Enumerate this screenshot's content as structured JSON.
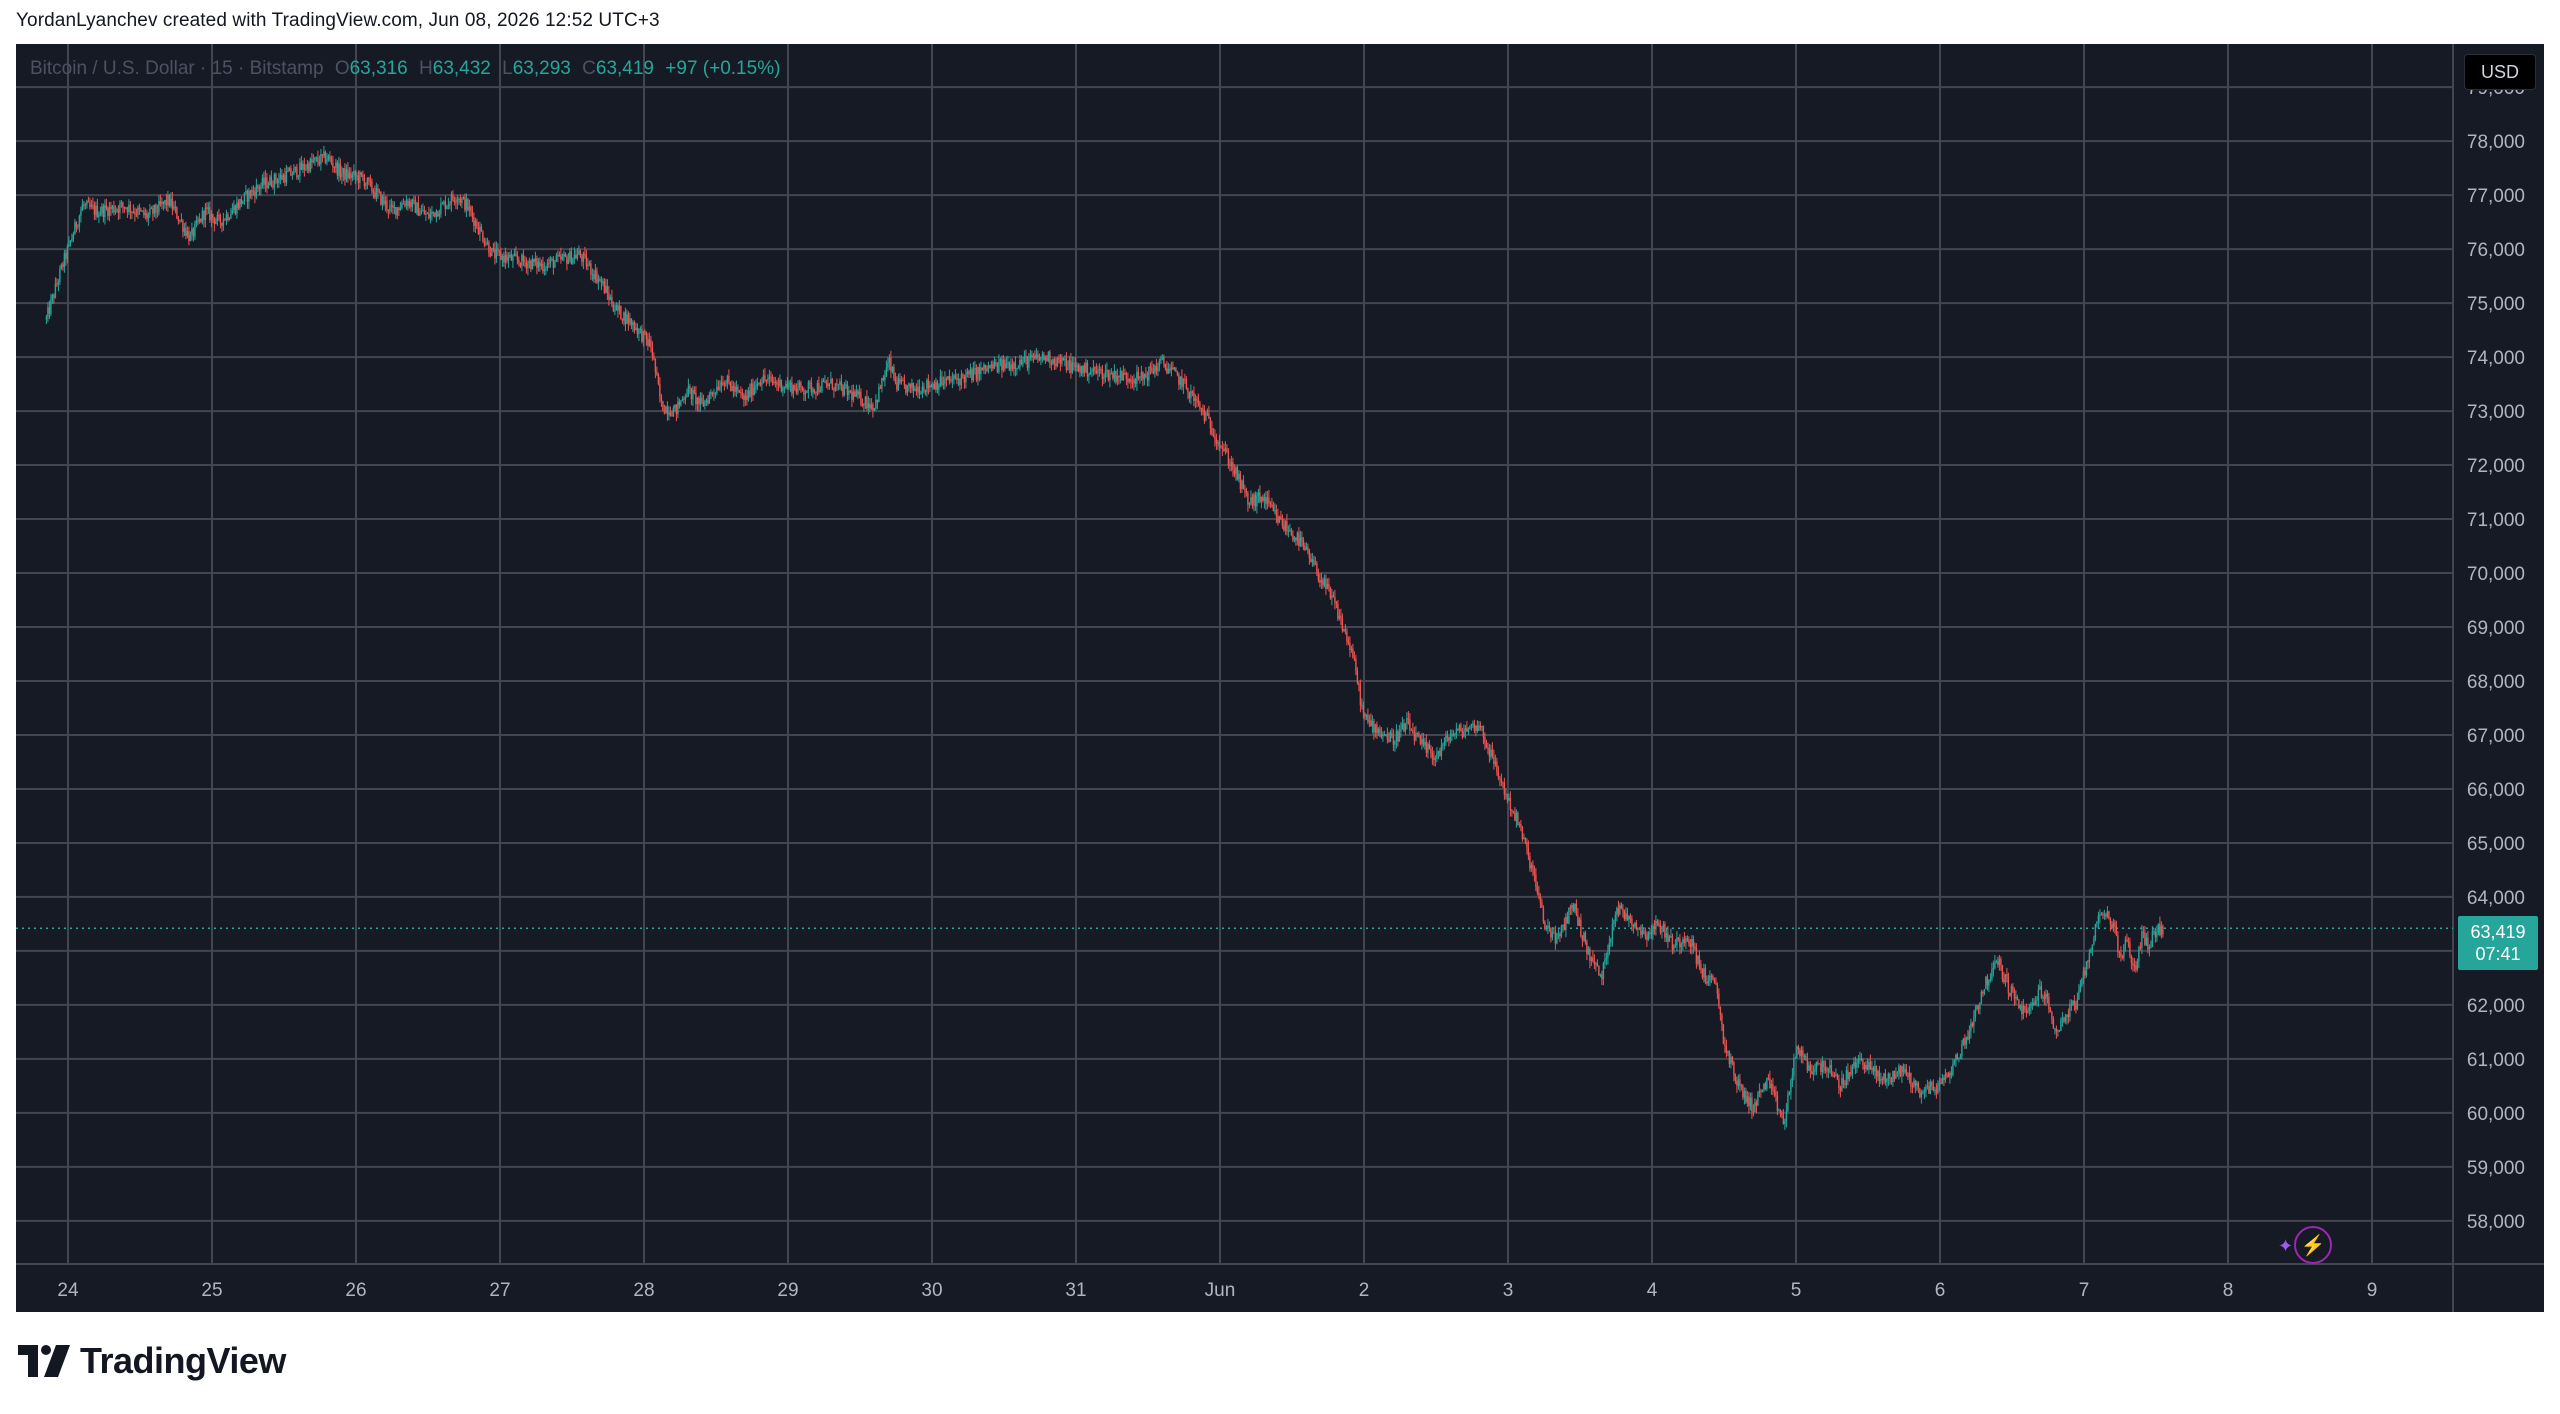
{
  "caption": "YordanLyanchev created with TradingView.com, Jun 08, 2026 12:52 UTC+3",
  "legend": {
    "symbol": "Bitcoin / U.S. Dollar · 15 · Bitstamp",
    "open_label": "O",
    "open": "63,316",
    "high_label": "H",
    "high": "63,432",
    "low_label": "L",
    "low": "63,293",
    "close_label": "C",
    "close": "63,419",
    "change": "+97 (+0.15%)"
  },
  "currency_button": "USD",
  "last_price": {
    "price": "63,419",
    "countdown": "07:41"
  },
  "brand": "TradingView",
  "colors": {
    "up": "#26a69a",
    "down": "#ef5350",
    "background": "#161a25",
    "grid": "#434651",
    "accent": "#9c27b0"
  },
  "chart_data": {
    "type": "line",
    "title": "Bitcoin / U.S. Dollar · 15 · Bitstamp",
    "ylim": [
      57200,
      79800
    ],
    "y_ticks": [
      "58,000",
      "59,000",
      "60,000",
      "61,000",
      "62,000",
      "63,000",
      "64,000",
      "65,000",
      "66,000",
      "67,000",
      "68,000",
      "69,000",
      "70,000",
      "71,000",
      "72,000",
      "73,000",
      "74,000",
      "75,000",
      "76,000",
      "77,000",
      "78,000",
      "79,000"
    ],
    "x_ticks": [
      "24",
      "25",
      "26",
      "27",
      "28",
      "29",
      "30",
      "31",
      "Jun",
      "2",
      "3",
      "4",
      "5",
      "6",
      "7",
      "8",
      "9"
    ],
    "grid": true,
    "last_value": 63419,
    "series": [
      {
        "x": [
          23.85,
          23.95,
          24.1,
          24.2,
          24.4,
          24.55,
          24.7,
          24.85,
          24.95,
          25.05,
          25.25,
          25.35,
          25.55,
          25.7,
          25.8,
          25.9,
          26.05,
          26.25,
          26.35,
          26.5,
          26.6,
          26.7,
          26.77,
          26.85,
          26.95,
          27.1,
          27.3,
          27.55,
          27.7,
          27.8,
          27.93,
          28.05,
          28.12,
          28.22,
          28.3,
          28.4,
          28.55,
          28.7,
          28.8,
          28.95,
          29.1,
          29.3,
          29.45,
          29.6,
          29.7,
          29.75,
          29.85,
          30.0,
          30.2,
          30.4,
          30.6,
          30.8,
          31.0,
          31.2,
          31.45,
          31.6,
          31.75,
          31.9,
          32.0,
          32.1,
          32.2,
          32.3,
          32.4,
          32.55,
          32.7,
          32.8,
          32.92,
          33.0,
          33.1,
          33.2,
          33.3,
          33.4,
          33.5,
          33.6,
          33.7,
          33.8,
          33.9,
          34.0,
          34.08,
          34.18,
          34.25,
          34.35,
          34.45,
          34.55,
          34.65,
          34.75,
          34.85,
          34.95,
          35.05,
          35.15,
          35.25,
          35.35,
          35.45,
          35.5,
          35.6,
          35.7,
          35.8,
          35.92,
          36.0,
          36.1,
          36.2,
          36.3,
          36.45,
          36.6,
          36.75,
          36.85,
          37.0,
          37.1,
          37.2,
          37.3,
          37.4,
          37.5,
          37.6,
          37.7,
          37.75,
          37.8,
          37.9,
          37.96,
          38.05,
          38.12,
          38.2,
          38.25,
          38.3,
          38.35,
          38.4,
          38.45,
          38.5,
          38.55
        ],
        "values": [
          74700,
          75600,
          76800,
          76700,
          76800,
          76600,
          76900,
          76200,
          76700,
          76500,
          77000,
          77200,
          77400,
          77600,
          77700,
          77400,
          77300,
          76700,
          76900,
          76600,
          76800,
          77000,
          76800,
          76400,
          75900,
          75800,
          75700,
          75900,
          75400,
          74900,
          74600,
          74200,
          73100,
          73000,
          73400,
          73100,
          73600,
          73200,
          73600,
          73500,
          73400,
          73500,
          73300,
          73100,
          73900,
          73500,
          73400,
          73500,
          73600,
          73800,
          73900,
          74000,
          73800,
          73700,
          73600,
          73900,
          73500,
          72900,
          72400,
          71900,
          71300,
          71400,
          71000,
          70600,
          69900,
          69400,
          68500,
          67300,
          67100,
          66900,
          67200,
          66800,
          66600,
          67000,
          67100,
          67200,
          66500,
          65800,
          65300,
          64400,
          63500,
          63200,
          63900,
          63000,
          62500,
          63800,
          63600,
          63300,
          63500,
          63100,
          63300,
          62600,
          62300,
          61300,
          60500,
          60100,
          60600,
          59800,
          61200,
          60800,
          60900,
          60500,
          61000,
          60600,
          60800,
          60400,
          60500,
          60900,
          61500,
          62300,
          62800,
          62200,
          61800,
          62300,
          62000,
          61500,
          61900,
          62100,
          63100,
          63800,
          63500,
          62900,
          63200,
          62600,
          63300,
          63100,
          63400,
          63419
        ]
      }
    ]
  }
}
